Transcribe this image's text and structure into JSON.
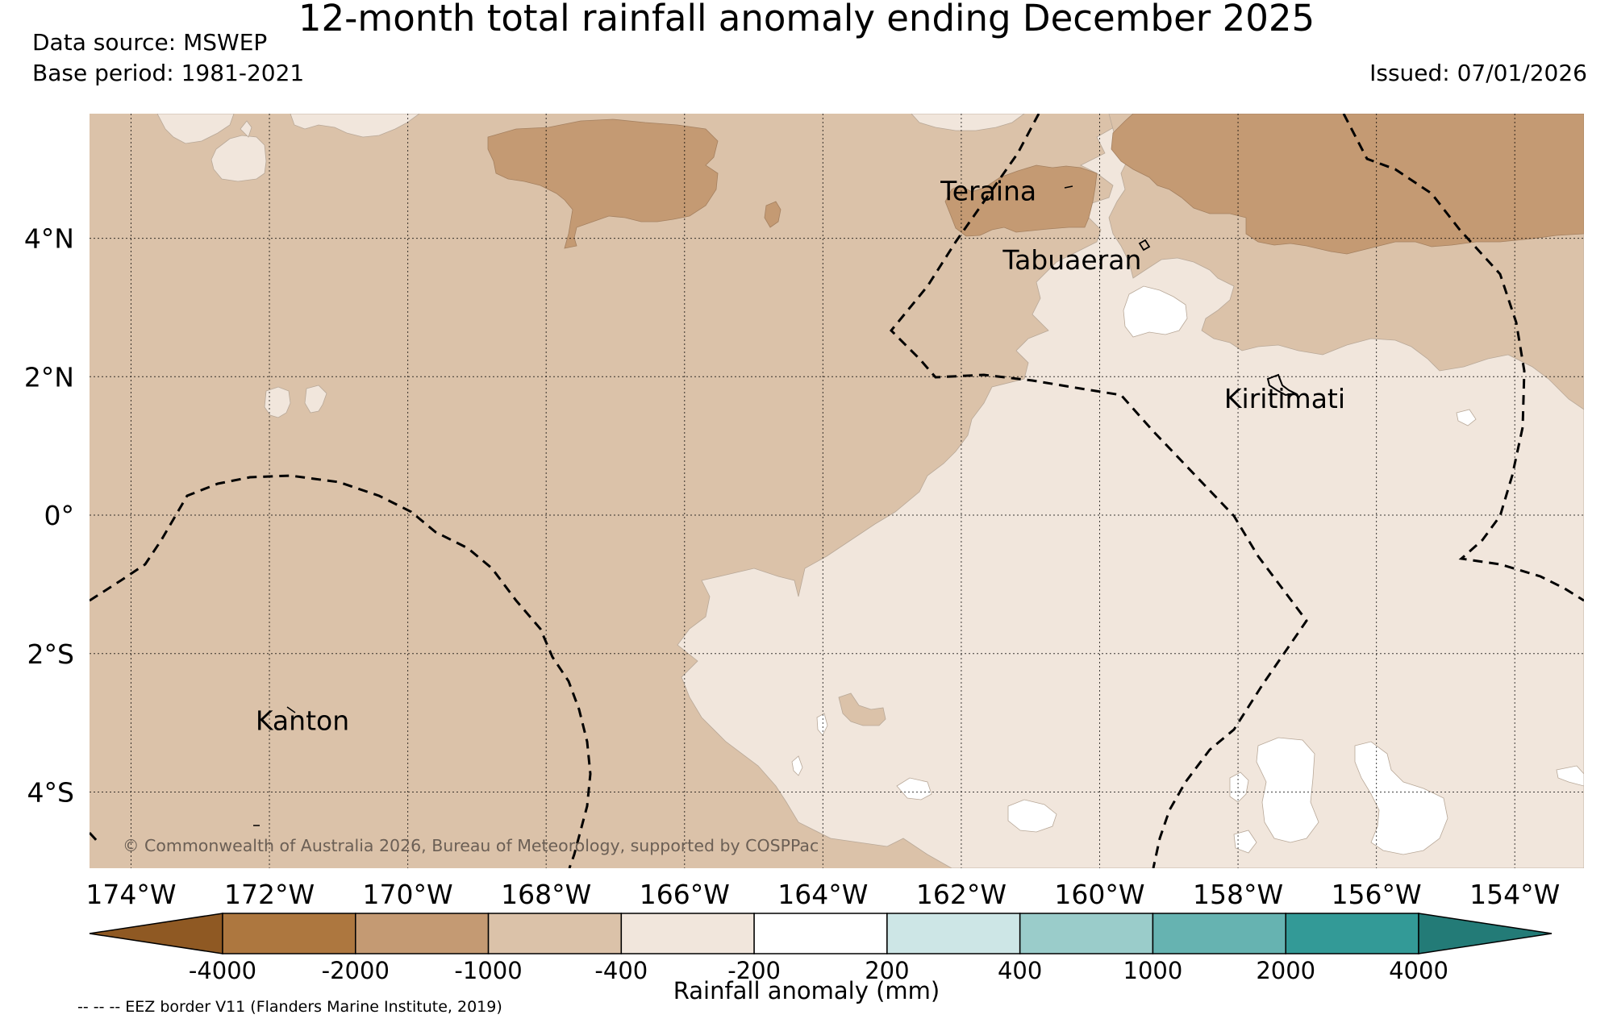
{
  "header": {
    "title": "12-month total rainfall anomaly ending December 2025",
    "source": "Data source: MSWEP",
    "base_period": "Base period: 1981-2021",
    "issued": "Issued: 07/01/2026"
  },
  "map": {
    "lon_range": [
      -174.6,
      -153.0
    ],
    "lat_range": [
      -5.1,
      5.8
    ],
    "lon_ticks": [
      {
        "value": -174,
        "label": "174°W"
      },
      {
        "value": -172,
        "label": "172°W"
      },
      {
        "value": -170,
        "label": "170°W"
      },
      {
        "value": -168,
        "label": "168°W"
      },
      {
        "value": -166,
        "label": "166°W"
      },
      {
        "value": -164,
        "label": "164°W"
      },
      {
        "value": -162,
        "label": "162°W"
      },
      {
        "value": -160,
        "label": "160°W"
      },
      {
        "value": -158,
        "label": "158°W"
      },
      {
        "value": -156,
        "label": "156°W"
      },
      {
        "value": -154,
        "label": "154°W"
      }
    ],
    "lat_ticks": [
      {
        "value": 4,
        "label": "4°N"
      },
      {
        "value": 2,
        "label": "2°N"
      },
      {
        "value": 0,
        "label": "0°"
      },
      {
        "value": -2,
        "label": "2°S"
      },
      {
        "value": -4,
        "label": "4°S"
      }
    ],
    "places": [
      {
        "name": "Teraina",
        "lon": -162.3,
        "lat": 4.55
      },
      {
        "name": "Tabuaeran",
        "lon": -161.4,
        "lat": 3.55
      },
      {
        "name": "Kiritimati",
        "lon": -158.2,
        "lat": 1.55
      },
      {
        "name": "Kanton",
        "lon": -172.2,
        "lat": -3.1
      }
    ],
    "copyright": "© Commonwealth of Australia 2026, Bureau of Meteorology, supported by COSPPac",
    "colors": {
      "c_-2000_-1000": "#c49a73",
      "c_-1000_-400": "#dbc2a9",
      "c_-400_-200": "#f1e6dc",
      "c_-200_200": "#ffffff"
    }
  },
  "legend": {
    "label": "Rainfall anomaly (mm)",
    "ticks": [
      "-4000",
      "-2000",
      "-1000",
      "-400",
      "-200",
      "200",
      "400",
      "1000",
      "2000",
      "4000"
    ],
    "colors": [
      "#8f5923",
      "#ad773f",
      "#c49a73",
      "#dbc2a9",
      "#f1e6dc",
      "#ffffff",
      "#cde6e6",
      "#9accca",
      "#66b3b1",
      "#339a97",
      "#237b77"
    ]
  },
  "footer": {
    "eez_note": "-- -- -- EEZ border V11 (Flanders Marine Institute, 2019)"
  }
}
